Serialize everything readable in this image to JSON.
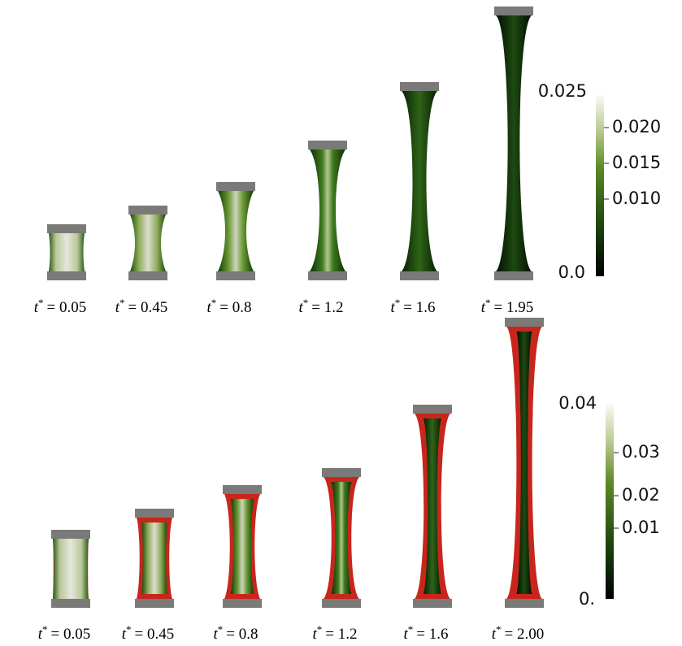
{
  "panels": [
    {
      "labels": [
        {
          "symbol": "t",
          "sup": "*",
          "text": "= 0.05"
        },
        {
          "symbol": "t",
          "sup": "*",
          "text": "= 0.45"
        },
        {
          "symbol": "t",
          "sup": "*",
          "text": "= 0.8"
        },
        {
          "symbol": "t",
          "sup": "*",
          "text": "= 1.2"
        },
        {
          "symbol": "t",
          "sup": "*",
          "text": "= 1.6"
        },
        {
          "symbol": "t",
          "sup": "*",
          "text": "= 1.95"
        }
      ],
      "colorbar": {
        "max_label": "0.025",
        "min_label": "0.0",
        "ticks": [
          "0.020",
          "0.015",
          "0.010"
        ]
      }
    },
    {
      "labels": [
        {
          "symbol": "t",
          "sup": "*",
          "text": "= 0.05"
        },
        {
          "symbol": "t",
          "sup": "*",
          "text": "= 0.45"
        },
        {
          "symbol": "t",
          "sup": "*",
          "text": "= 0.8"
        },
        {
          "symbol": "t",
          "sup": "*",
          "text": "= 1.2"
        },
        {
          "symbol": "t",
          "sup": "*",
          "text": "= 1.6"
        },
        {
          "symbol": "t",
          "sup": "*",
          "text": "= 2.00"
        }
      ],
      "colorbar": {
        "max_label": "0.04",
        "min_label": "0.",
        "ticks": [
          "0.03",
          "0.02",
          "0.01"
        ]
      }
    }
  ]
}
